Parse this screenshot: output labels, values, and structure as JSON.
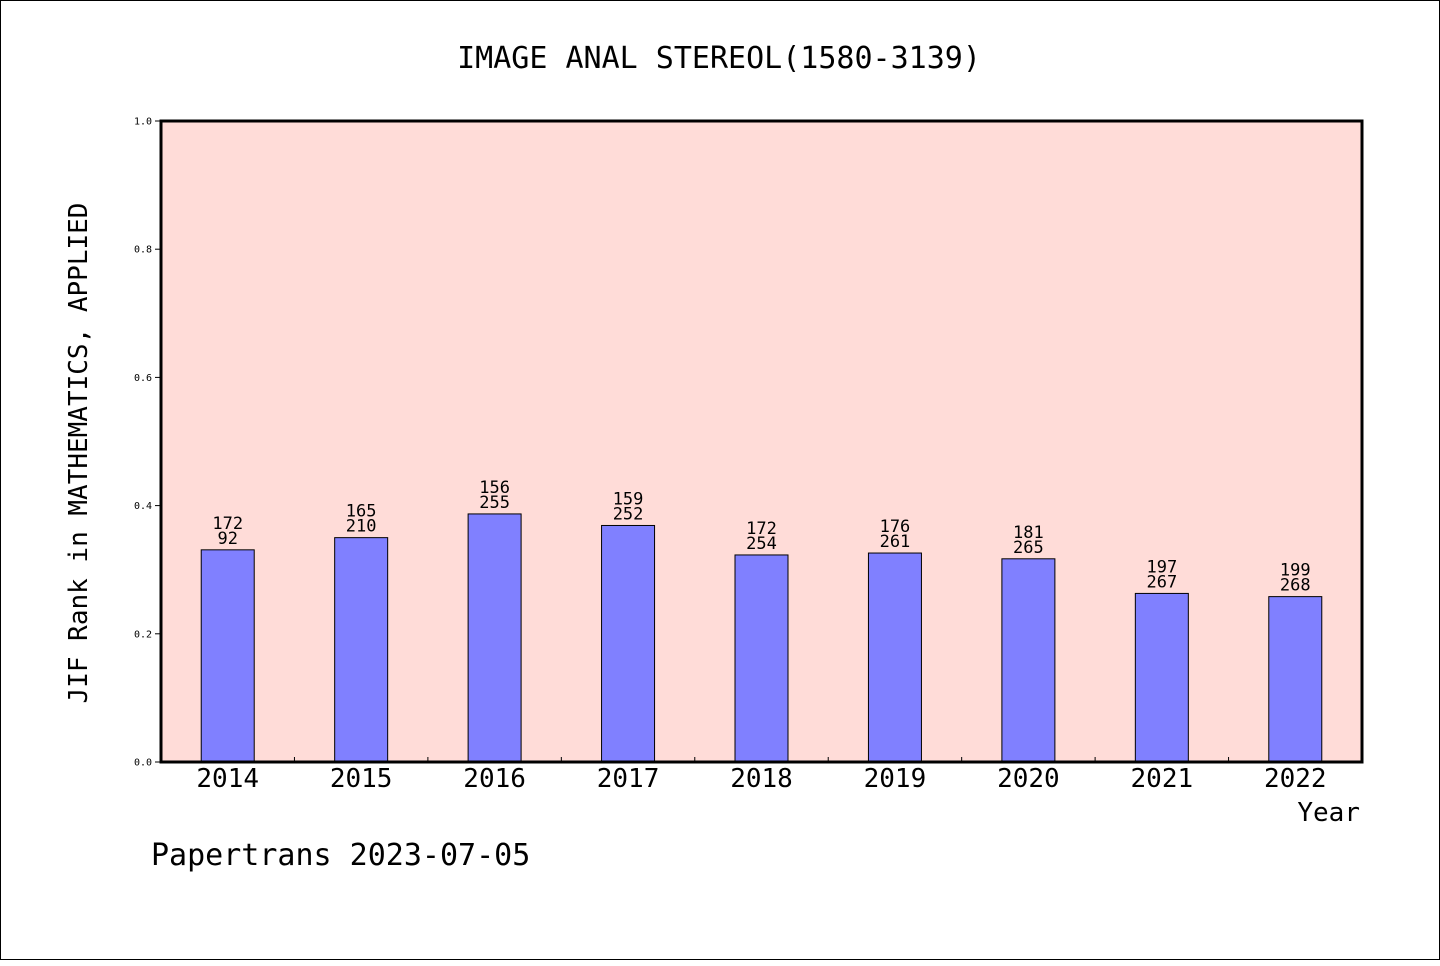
{
  "chart_data": {
    "type": "bar",
    "title": "IMAGE ANAL STEREOL(1580-3139)",
    "xlabel": "Year",
    "ylabel": "JIF Rank in MATHEMATICS, APPLIED",
    "ylim": [
      0,
      1.0
    ],
    "yticks": [
      "0.0",
      "0.2",
      "0.4",
      "0.6",
      "0.8",
      "1.0"
    ],
    "grid": false,
    "categories": [
      "2014",
      "2015",
      "2016",
      "2017",
      "2018",
      "2019",
      "2020",
      "2021",
      "2022"
    ],
    "values": [
      0.331,
      0.35,
      0.387,
      0.369,
      0.323,
      0.326,
      0.317,
      0.263,
      0.258
    ],
    "labels_top": [
      "172",
      "165",
      "156",
      "159",
      "172",
      "176",
      "181",
      "197",
      "199"
    ],
    "labels_bottom": [
      "92",
      "210",
      "255",
      "252",
      "254",
      "261",
      "265",
      "267",
      "268"
    ],
    "colors": {
      "plot_background": "#ffdcd8",
      "bar_fill": "#8080ff",
      "bar_stroke": "#000000"
    }
  },
  "footer": {
    "text": "Papertrans 2023-07-05"
  }
}
